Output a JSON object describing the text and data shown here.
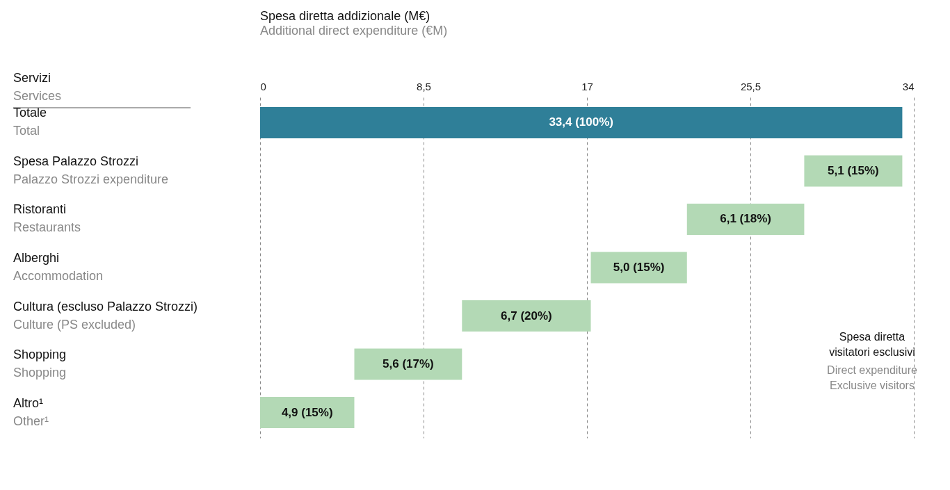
{
  "chart_data": {
    "type": "bar",
    "orientation": "horizontal",
    "title": "Spesa diretta addizionale (M€)",
    "subtitle": "Additional direct expenditure (€M)",
    "categories": [
      "Totale\nTotal",
      "Spesa Palazzo Strozzi\nPalazzo Strozzi expenditure",
      "Ristoranti\nRestaurants",
      "Alberghi\nAccommodation",
      "Cultura (escluso Palazzo Strozzi)\nCulture (PS excluded)",
      "Shopping\nShopping",
      "Altro¹\nOther¹"
    ],
    "values": [
      33.4,
      5.1,
      6.1,
      5.0,
      6.7,
      5.6,
      4.9
    ],
    "base": [
      0,
      28.3,
      22.2,
      17.2,
      10.5,
      4.9,
      0
    ],
    "colors": [
      "#2f7f98",
      "#b3d9b5",
      "#b3d9b5",
      "#b3d9b5",
      "#b3d9b5",
      "#b3d9b5",
      "#b3d9b5"
    ],
    "value_labels": [
      "33,4 (100%)",
      "5,1 (15%)",
      "6,1 (18%)",
      "5,0 (15%)",
      "6,7 (20%)",
      "5,6 (17%)",
      "4,9 (15%)"
    ],
    "xlim": [
      0,
      34
    ],
    "xticks": [
      0,
      {
        "value": 8.5,
        "label": "8,5"
      },
      17,
      {
        "value": 25.5,
        "label": "25,5"
      },
      34
    ],
    "grid": "x",
    "annotations": [
      "Servizi\nServices",
      "Spesa diretta\nvisitatori esclusivi",
      "Direct expenditure\nExclusive visitors"
    ]
  }
}
